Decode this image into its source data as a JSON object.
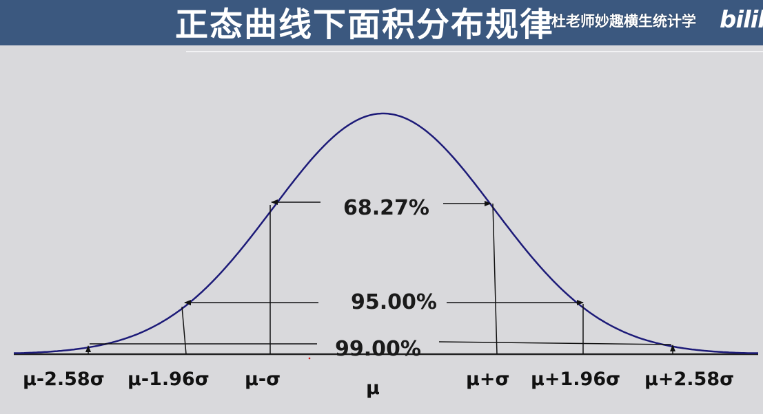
{
  "header": {
    "title": "正态曲线下面积分布规律",
    "watermark": "杜老师妙趣横生统计学",
    "logo_text": "bilib"
  },
  "diagram": {
    "curve_color": "#1c1a78",
    "background_color": "#d9d9dc",
    "header_color": "#3b587f",
    "percent_labels": {
      "sigma1": "68.27%",
      "sigma196": "95.00%",
      "sigma258": "99.00%"
    },
    "axis_labels": {
      "m258": "μ-2.58σ",
      "m196": "μ-1.96σ",
      "m1": "μ-σ",
      "mu": "μ",
      "p1": "μ+σ",
      "p196": "μ+1.96σ",
      "p258": "μ+2.58σ"
    }
  }
}
